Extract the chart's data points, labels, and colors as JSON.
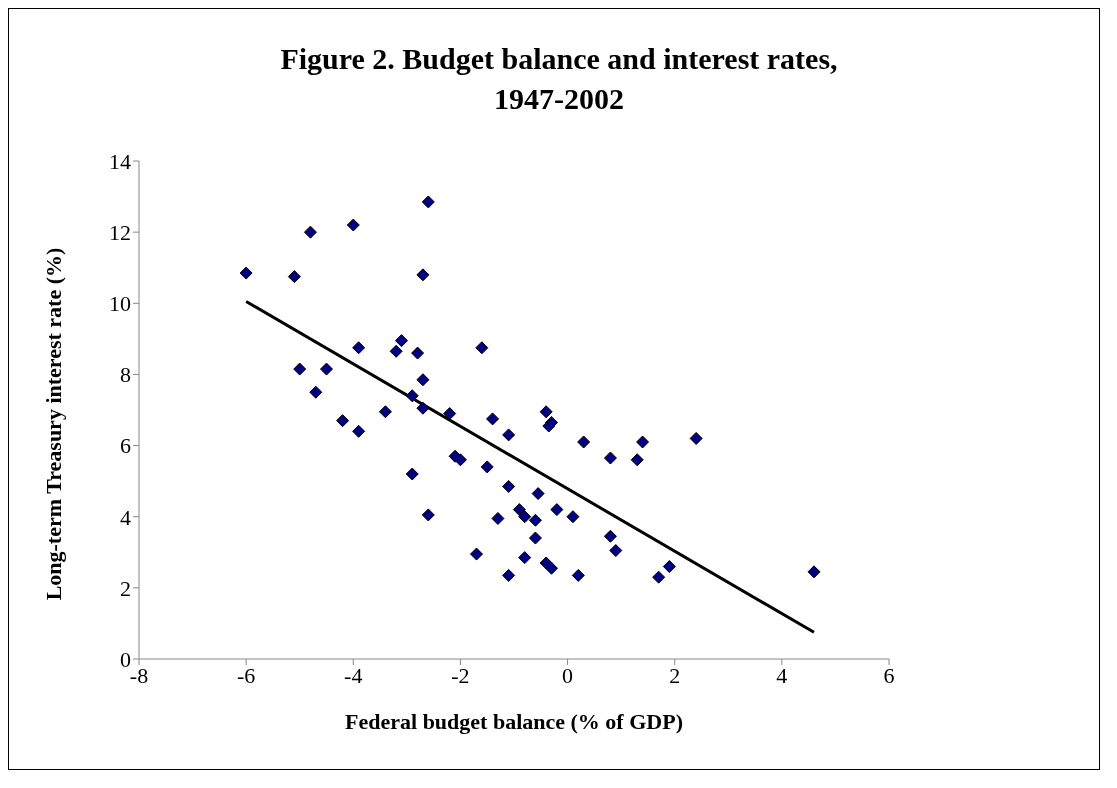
{
  "chart_data": {
    "type": "scatter",
    "title": "Figure 2. Budget balance and interest rates, 1947-2002",
    "xlabel": "Federal budget balance (% of GDP)",
    "ylabel": "Long-term Treasury interest rate (%)",
    "xlim": [
      -8,
      6
    ],
    "xticks": [
      -8,
      -6,
      -4,
      -2,
      0,
      2,
      4,
      6
    ],
    "ylim": [
      0,
      14
    ],
    "yticks": [
      0,
      2,
      4,
      6,
      8,
      10,
      12,
      14
    ],
    "grid": false,
    "legend": false,
    "series": [
      {
        "marker": "diamond",
        "color": "#000080",
        "x": [
          -6.0,
          -5.1,
          -4.8,
          -4.0,
          -2.6,
          -2.7,
          -5.0,
          -4.5,
          -4.7,
          -4.2,
          -3.9,
          -3.9,
          -3.4,
          -3.2,
          -3.1,
          -2.8,
          -2.7,
          -2.9,
          -2.7,
          -2.9,
          -2.6,
          -2.2,
          -2.1,
          -2.0,
          -1.6,
          -1.4,
          -1.5,
          -1.1,
          -1.1,
          -1.3,
          -1.7,
          -1.1,
          -0.9,
          -0.8,
          -0.8,
          -0.6,
          -0.6,
          -0.55,
          -0.4,
          -0.3,
          -0.35,
          -0.4,
          -0.3,
          -0.2,
          0.1,
          0.2,
          0.3,
          0.8,
          0.8,
          0.9,
          1.3,
          1.4,
          1.7,
          1.9,
          2.4,
          4.6
        ],
        "values": [
          10.85,
          10.75,
          12.0,
          12.2,
          12.85,
          10.8,
          8.15,
          8.15,
          7.5,
          6.7,
          8.75,
          6.4,
          6.95,
          8.65,
          8.95,
          8.6,
          7.85,
          7.4,
          7.05,
          5.2,
          4.05,
          6.9,
          5.7,
          5.6,
          8.75,
          6.75,
          5.4,
          6.3,
          4.85,
          3.95,
          2.95,
          2.35,
          4.2,
          4.0,
          2.85,
          3.9,
          3.4,
          4.65,
          6.95,
          6.65,
          6.55,
          2.7,
          2.55,
          4.2,
          4.0,
          2.35,
          6.1,
          5.65,
          3.45,
          3.05,
          5.6,
          6.1,
          2.3,
          2.6,
          6.2,
          2.45
        ]
      },
      {
        "type": "line",
        "marker": "none",
        "color": "#000000",
        "x": [
          -6.0,
          4.6
        ],
        "values": [
          10.05,
          0.75
        ]
      }
    ]
  }
}
